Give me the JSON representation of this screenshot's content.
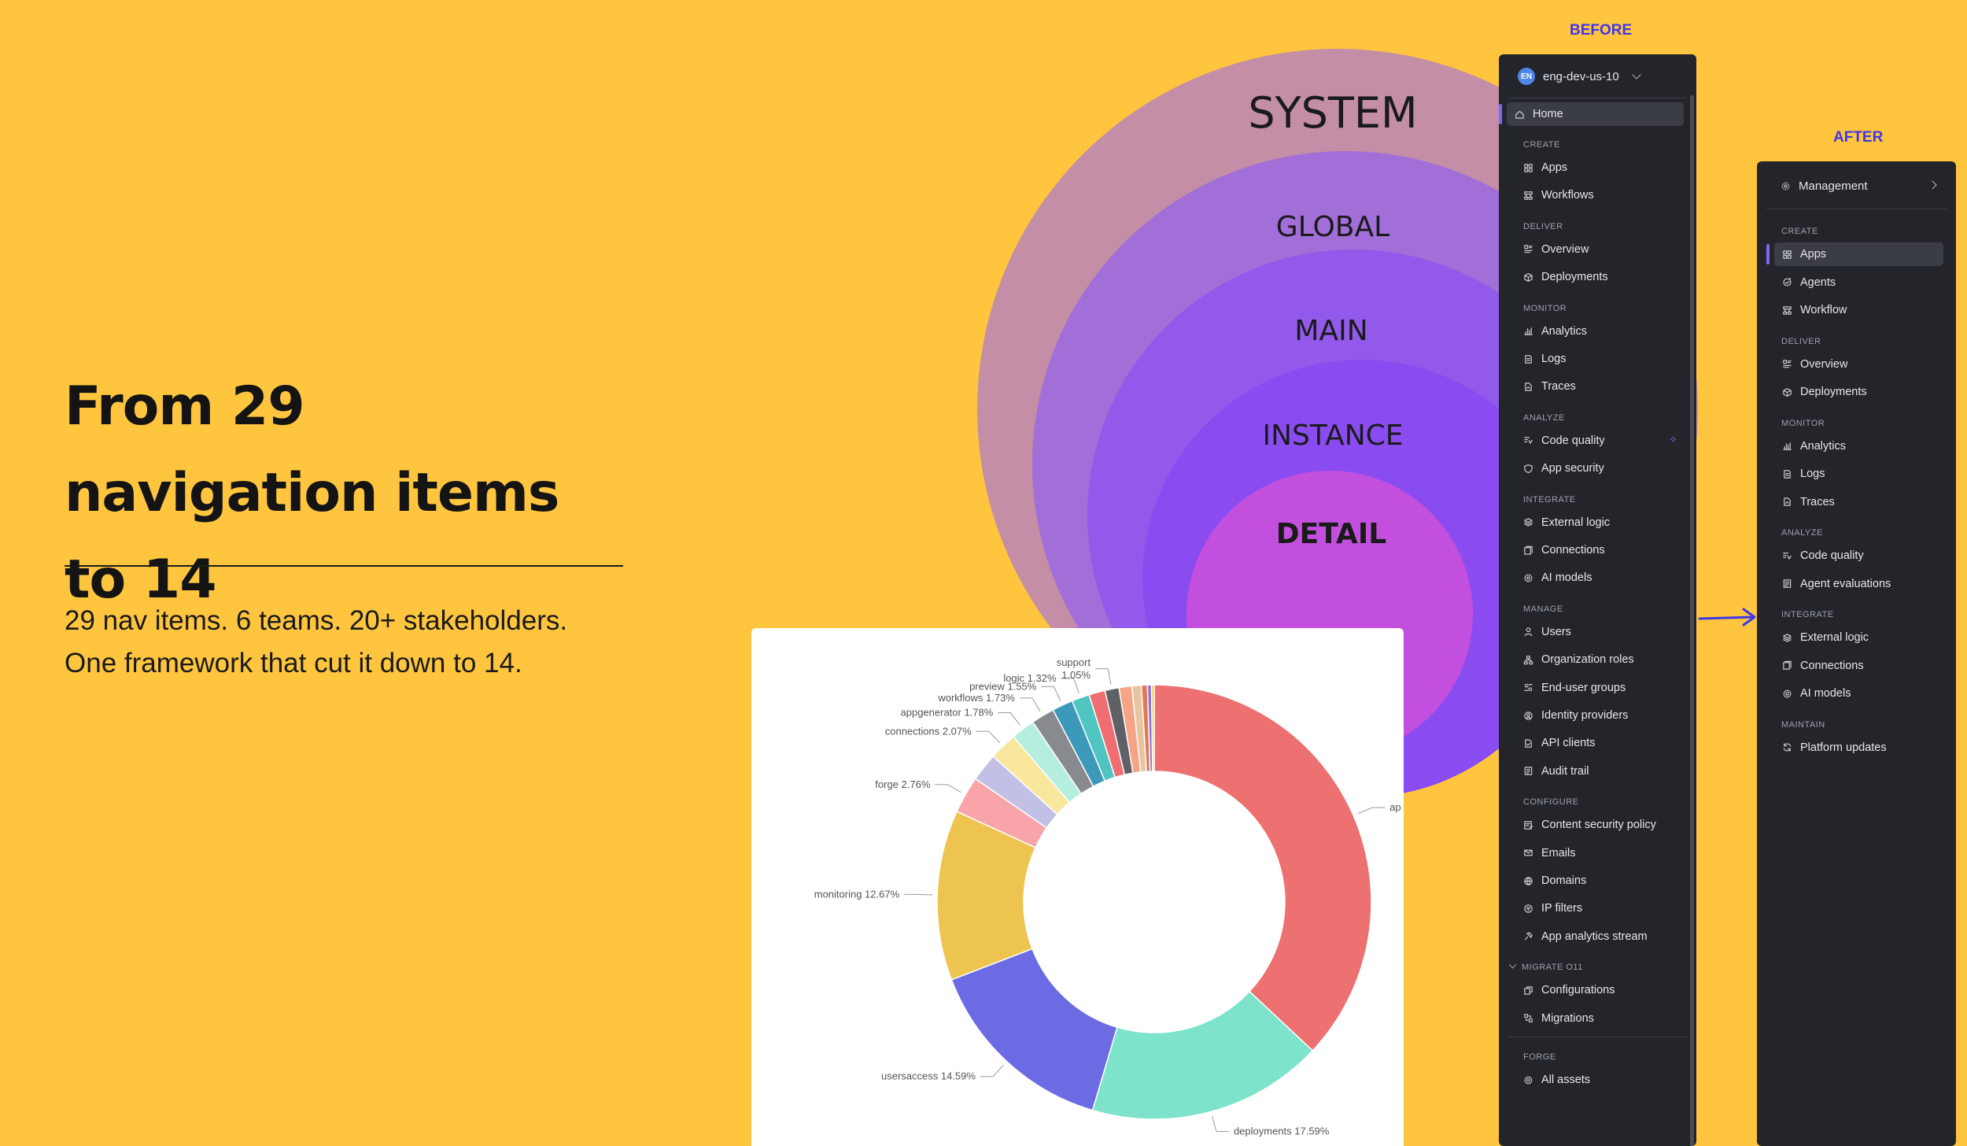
{
  "hero": {
    "title": "From 29 navigation items to 14",
    "subtitle_line1": "29 nav items. 6 teams. 20+ stakeholders.",
    "subtitle_line2": "One framework that cut it down to 14."
  },
  "labels": {
    "before": "BEFORE",
    "after": "AFTER"
  },
  "diagram": {
    "circles": [
      "SYSTEM",
      "GLOBAL",
      "MAIN",
      "INSTANCE",
      "DETAIL"
    ],
    "colors": [
      "#C48EA6",
      "#A26ED8",
      "#9259EB",
      "#8A4CF0",
      "#C24FDE"
    ]
  },
  "before_sidebar": {
    "workspace": {
      "avatar": "EN",
      "name": "eng-dev-us-10"
    },
    "home": "Home",
    "sections": [
      {
        "title": "CREATE",
        "items": [
          {
            "label": "Apps",
            "icon": "grid-icon"
          },
          {
            "label": "Workflows",
            "icon": "workflow-icon"
          }
        ]
      },
      {
        "title": "DELIVER",
        "items": [
          {
            "label": "Overview",
            "icon": "overview-icon"
          },
          {
            "label": "Deployments",
            "icon": "cube-icon"
          }
        ]
      },
      {
        "title": "MONITOR",
        "items": [
          {
            "label": "Analytics",
            "icon": "bar-chart-icon"
          },
          {
            "label": "Logs",
            "icon": "document-icon"
          },
          {
            "label": "Traces",
            "icon": "trace-icon"
          }
        ]
      },
      {
        "title": "ANALYZE",
        "items": [
          {
            "label": "Code quality",
            "icon": "code-quality-icon"
          },
          {
            "label": "App security",
            "icon": "shield-icon"
          }
        ]
      },
      {
        "title": "INTEGRATE",
        "items": [
          {
            "label": "External logic",
            "icon": "layers-icon"
          },
          {
            "label": "Connections",
            "icon": "connections-icon"
          },
          {
            "label": "AI models",
            "icon": "gear-icon"
          }
        ]
      },
      {
        "title": "MANAGE",
        "items": [
          {
            "label": "Users",
            "icon": "user-icon"
          },
          {
            "label": "Organization roles",
            "icon": "org-icon"
          },
          {
            "label": "End-user groups",
            "icon": "group-icon"
          },
          {
            "label": "Identity providers",
            "icon": "identity-icon"
          },
          {
            "label": "API clients",
            "icon": "api-icon"
          },
          {
            "label": "Audit trail",
            "icon": "audit-icon"
          }
        ]
      },
      {
        "title": "CONFIGURE",
        "items": [
          {
            "label": "Content security policy",
            "icon": "policy-icon"
          },
          {
            "label": "Emails",
            "icon": "mail-icon"
          },
          {
            "label": "Domains",
            "icon": "globe-icon"
          },
          {
            "label": "IP filters",
            "icon": "filter-icon"
          },
          {
            "label": "App analytics stream",
            "icon": "stream-icon"
          }
        ]
      },
      {
        "title": "MIGRATE O11",
        "items": [
          {
            "label": "Configurations",
            "icon": "config-icon"
          },
          {
            "label": "Migrations",
            "icon": "migrate-icon"
          }
        ]
      },
      {
        "title": "FORGE",
        "items": [
          {
            "label": "All assets",
            "icon": "assets-icon"
          }
        ]
      }
    ]
  },
  "after_sidebar": {
    "management": "Management",
    "sections": [
      {
        "title": "CREATE",
        "items": [
          {
            "label": "Apps",
            "icon": "grid-icon"
          },
          {
            "label": "Agents",
            "icon": "agent-icon"
          },
          {
            "label": "Workflow",
            "icon": "workflow-icon"
          }
        ]
      },
      {
        "title": "DELIVER",
        "items": [
          {
            "label": "Overview",
            "icon": "overview-icon"
          },
          {
            "label": "Deployments",
            "icon": "cube-icon"
          }
        ]
      },
      {
        "title": "MONITOR",
        "items": [
          {
            "label": "Analytics",
            "icon": "bar-chart-icon"
          },
          {
            "label": "Logs",
            "icon": "document-icon"
          },
          {
            "label": "Traces",
            "icon": "trace-icon"
          }
        ]
      },
      {
        "title": "ANALYZE",
        "items": [
          {
            "label": "Code quality",
            "icon": "code-quality-icon"
          },
          {
            "label": "Agent evaluations",
            "icon": "evaluation-icon"
          }
        ]
      },
      {
        "title": "INTEGRATE",
        "items": [
          {
            "label": "External logic",
            "icon": "layers-icon"
          },
          {
            "label": "Connections",
            "icon": "connections-icon"
          },
          {
            "label": "AI models",
            "icon": "gear-icon"
          }
        ]
      },
      {
        "title": "MAINTAIN",
        "items": [
          {
            "label": "Platform updates",
            "icon": "refresh-icon"
          }
        ]
      }
    ]
  },
  "chart_data": {
    "type": "pie",
    "donut": true,
    "slices": [
      {
        "label": "ap",
        "value": 37.0,
        "display": "ap",
        "color": "#EC7170"
      },
      {
        "label": "deployments",
        "value": 17.59,
        "display": "deployments 17.59%",
        "color": "#7DE3CB"
      },
      {
        "label": "usersaccess",
        "value": 14.59,
        "display": "usersaccess 14.59%",
        "color": "#6C6BE3"
      },
      {
        "label": "monitoring",
        "value": 12.67,
        "display": "monitoring 12.67%",
        "color": "#ECC44F"
      },
      {
        "label": "forge",
        "value": 2.76,
        "display": "forge 2.76%",
        "color": "#F8A4A8"
      },
      {
        "label": "",
        "value": 2.1,
        "display": "",
        "color": "#C3C0E6"
      },
      {
        "label": "connections",
        "value": 2.07,
        "display": "connections 2.07%",
        "color": "#F8E79D"
      },
      {
        "label": "appgenerator",
        "value": 1.78,
        "display": "appgenerator 1.78%",
        "color": "#B5EEDF"
      },
      {
        "label": "workflows",
        "value": 1.73,
        "display": "workflows 1.73%",
        "color": "#888A8F"
      },
      {
        "label": "preview",
        "value": 1.55,
        "display": "preview 1.55%",
        "color": "#3C99BA"
      },
      {
        "label": "logic",
        "value": 1.32,
        "display": "logic 1.32%",
        "color": "#4FC5C2"
      },
      {
        "label": "",
        "value": 1.2,
        "display": "",
        "color": "#F06E72"
      },
      {
        "label": "support",
        "value": 1.05,
        "display": "support\n1.05%",
        "color": "#5F6166"
      },
      {
        "label": "",
        "value": 0.95,
        "display": "",
        "color": "#F5A583"
      },
      {
        "label": "",
        "value": 0.7,
        "display": "",
        "color": "#E9C4A0"
      },
      {
        "label": "",
        "value": 0.45,
        "display": "",
        "color": "#E07A56"
      },
      {
        "label": "",
        "value": 0.3,
        "display": "",
        "color": "#8E6FD6"
      },
      {
        "label": "",
        "value": 0.2,
        "display": "",
        "color": "#F2C94C"
      }
    ]
  }
}
